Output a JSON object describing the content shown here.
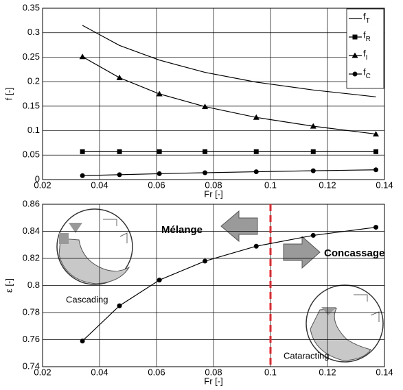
{
  "chart_data": [
    {
      "type": "line",
      "xlabel": "Fr [-]",
      "ylabel": "f [-]",
      "x": [
        0.034,
        0.047,
        0.061,
        0.077,
        0.095,
        0.115,
        0.137
      ],
      "xlim": [
        0.02,
        0.14
      ],
      "xticks": [
        0.02,
        0.04,
        0.06,
        0.08,
        0.1,
        0.12,
        0.14
      ],
      "ylim": [
        0,
        0.35
      ],
      "yticks": [
        0,
        0.05,
        0.1,
        0.15,
        0.2,
        0.25,
        0.3,
        0.35
      ],
      "grid": true,
      "legend": "upper right",
      "series": [
        {
          "name": "fT",
          "color": "#000000",
          "marker": "none",
          "values": [
            0.315,
            0.274,
            0.244,
            0.219,
            0.199,
            0.183,
            0.169
          ]
        },
        {
          "name": "fR",
          "color": "#000000",
          "marker": "square",
          "values": [
            0.057,
            0.057,
            0.057,
            0.057,
            0.057,
            0.057,
            0.057
          ]
        },
        {
          "name": "fI",
          "color": "#000000",
          "marker": "triangle",
          "values": [
            0.251,
            0.208,
            0.175,
            0.149,
            0.127,
            0.109,
            0.093
          ]
        },
        {
          "name": "fC",
          "color": "#000000",
          "marker": "circle",
          "values": [
            0.008,
            0.01,
            0.012,
            0.014,
            0.016,
            0.018,
            0.02
          ]
        }
      ]
    },
    {
      "type": "line",
      "xlabel": "Fr [-]",
      "ylabel": "ε [-]",
      "x": [
        0.034,
        0.047,
        0.061,
        0.077,
        0.095,
        0.115,
        0.137
      ],
      "xlim": [
        0.02,
        0.14
      ],
      "xticks": [
        0.02,
        0.04,
        0.06,
        0.08,
        0.1,
        0.12,
        0.14
      ],
      "ylim": [
        0.74,
        0.86
      ],
      "yticks": [
        0.74,
        0.76,
        0.78,
        0.8,
        0.82,
        0.84,
        0.86
      ],
      "grid": true,
      "vline": 0.1,
      "vline_color": "#e8232a",
      "series": [
        {
          "color": "#000000",
          "marker": "circle",
          "values": [
            0.759,
            0.785,
            0.804,
            0.818,
            0.829,
            0.837,
            0.843
          ]
        }
      ],
      "annotations": [
        "Mélange",
        "Concassage",
        "Cascading",
        "Cataracting"
      ]
    }
  ]
}
